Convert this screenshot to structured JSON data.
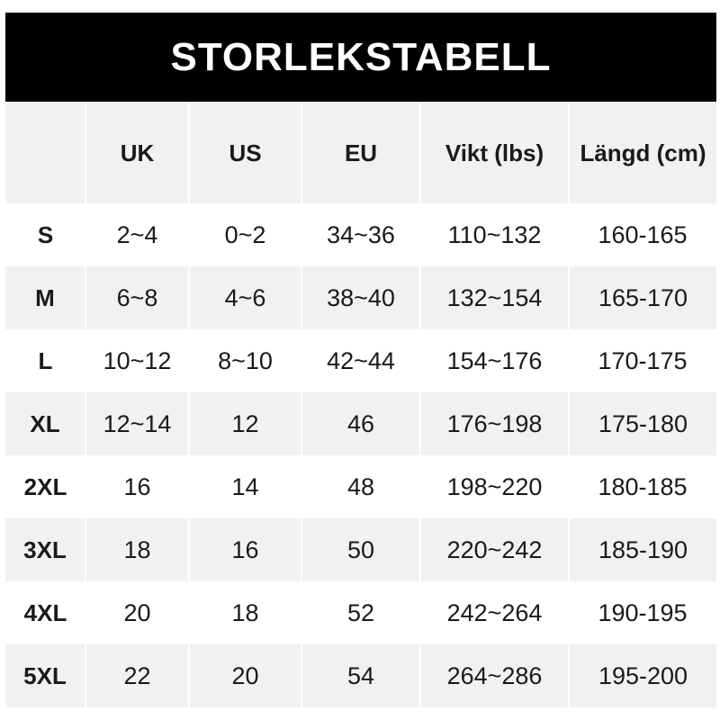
{
  "title": "STORLEKSTABELL",
  "table": {
    "headers": [
      "",
      "UK",
      "US",
      "EU",
      "Vikt (lbs)",
      "Längd (cm)"
    ],
    "rows": [
      [
        "S",
        "2~4",
        "0~2",
        "34~36",
        "110~132",
        "160-165"
      ],
      [
        "M",
        "6~8",
        "4~6",
        "38~40",
        "132~154",
        "165-170"
      ],
      [
        "L",
        "10~12",
        "8~10",
        "42~44",
        "154~176",
        "170-175"
      ],
      [
        "XL",
        "12~14",
        "12",
        "46",
        "176~198",
        "175-180"
      ],
      [
        "2XL",
        "16",
        "14",
        "48",
        "198~220",
        "180-185"
      ],
      [
        "3XL",
        "18",
        "16",
        "50",
        "220~242",
        "185-190"
      ],
      [
        "4XL",
        "20",
        "18",
        "52",
        "242~264",
        "190-195"
      ],
      [
        "5XL",
        "22",
        "20",
        "54",
        "264~286",
        "195-200"
      ]
    ]
  },
  "colors": {
    "title_bg": "#000000",
    "title_text": "#ffffff",
    "stripe": "#f1f1f1"
  }
}
